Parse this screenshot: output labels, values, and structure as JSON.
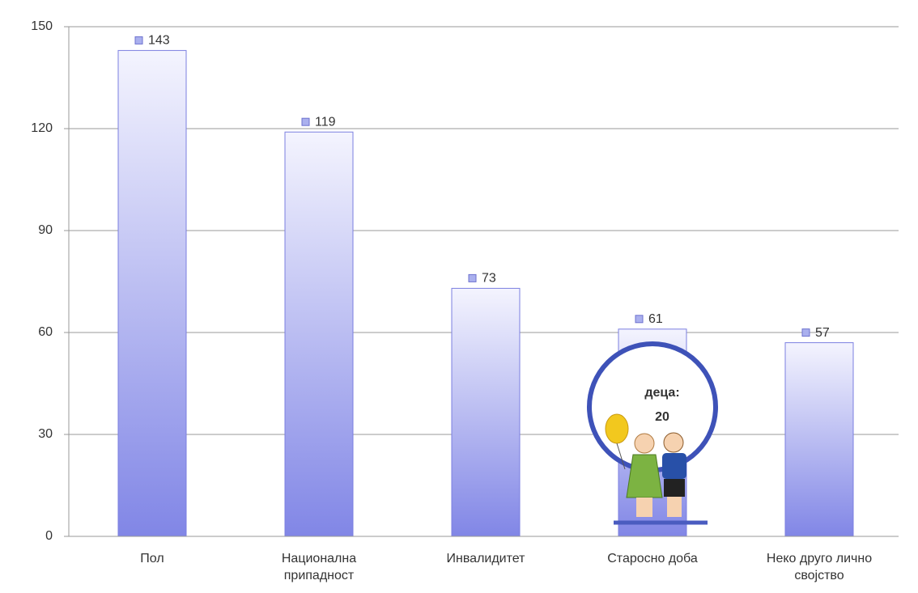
{
  "chart_data": {
    "type": "bar",
    "categories": [
      "Пол",
      "Национална\nприпадност",
      "Инвалидитет",
      "Старосно доба",
      "Неко друго лично\nсвојство"
    ],
    "values": [
      143,
      119,
      73,
      61,
      57
    ],
    "color": "#7b7fe0",
    "ylim": [
      0,
      150
    ],
    "yticks": [
      0,
      30,
      60,
      90,
      120,
      150
    ],
    "grid": true,
    "annotation": {
      "label": "деца:",
      "value": 20
    }
  }
}
